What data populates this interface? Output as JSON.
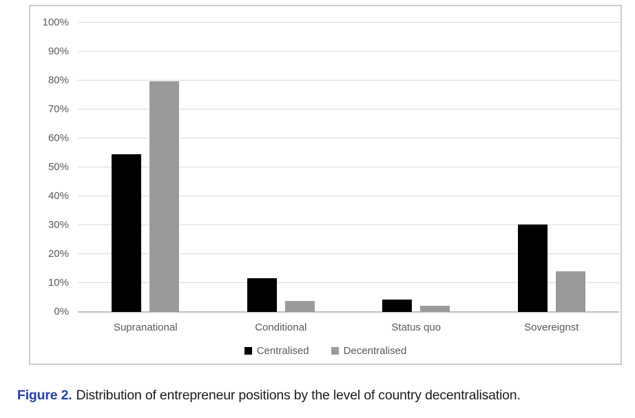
{
  "figure": {
    "caption_label": "Figure 2.",
    "caption_text": "Distribution of entrepreneur positions by the level of country decentralisation."
  },
  "colors": {
    "caption_label": "#2440a0",
    "caption_text": "#1a1a1a",
    "frame_border": "#cccccc",
    "gridline": "#d9d9d9",
    "axis_line": "#c0c0c0",
    "tick_text": "#595959"
  },
  "chart_data": {
    "type": "bar",
    "title": "",
    "xlabel": "",
    "ylabel": "",
    "categories": [
      "Supranational",
      "Conditional",
      "Status quo",
      "Sovereignst"
    ],
    "series": [
      {
        "name": "Centralised",
        "color": "#000000",
        "values": [
          54.5,
          11.6,
          4.3,
          30.2
        ]
      },
      {
        "name": "Decentralised",
        "color": "#9a9a9a",
        "values": [
          79.8,
          3.9,
          2.1,
          14.0
        ]
      }
    ],
    "ylim": [
      0,
      100
    ],
    "ytick_step": 10,
    "ytick_labels": [
      "0%",
      "10%",
      "20%",
      "30%",
      "40%",
      "50%",
      "60%",
      "70%",
      "80%",
      "90%",
      "100%"
    ],
    "grid": "horizontal",
    "legend_position": "bottom"
  }
}
